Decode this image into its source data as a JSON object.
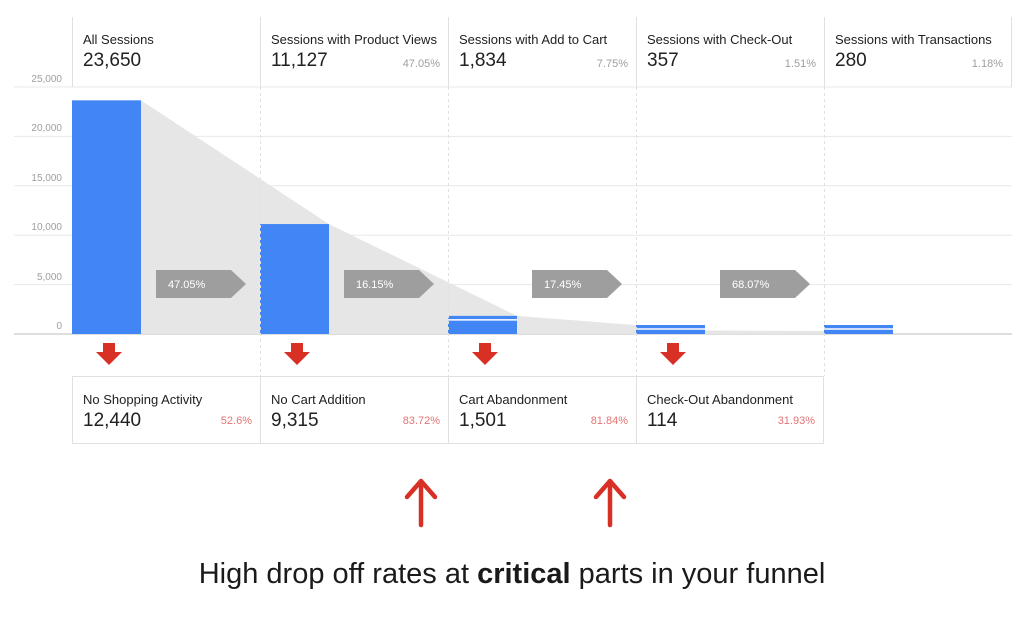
{
  "chart_data": {
    "type": "bar",
    "title": "",
    "y_ticks": [
      "25,000",
      "20,000",
      "15,000",
      "10,000",
      "5,000",
      "0"
    ],
    "ylim": [
      0,
      25000
    ],
    "categories": [
      "All Sessions",
      "Sessions with Product Views",
      "Sessions with Add to Cart",
      "Sessions with Check-Out",
      "Sessions with Transactions"
    ],
    "values": [
      23650,
      11127,
      1834,
      357,
      280
    ],
    "value_labels": [
      "23,650",
      "11,127",
      "1,834",
      "357",
      "280"
    ],
    "stage_percents": [
      "",
      "47.05%",
      "7.75%",
      "1.51%",
      "1.18%"
    ],
    "transition_percents": [
      "47.05%",
      "16.15%",
      "17.45%",
      "68.07%"
    ],
    "drop_offs": [
      {
        "name": "No Shopping Activity",
        "value": "12,440",
        "percent": "52.6%"
      },
      {
        "name": "No Cart Addition",
        "value": "9,315",
        "percent": "83.72%"
      },
      {
        "name": "Cart Abandonment",
        "value": "1,501",
        "percent": "81.84%"
      },
      {
        "name": "Check-Out Abandonment",
        "value": "114",
        "percent": "31.93%"
      }
    ],
    "highlighted_drop_offs": [
      "No Cart Addition",
      "Cart Abandonment"
    ],
    "colors": {
      "bar": "#4285f4",
      "funnel": "#e6e6e6",
      "transition_arrow": "#9e9e9e",
      "drop_arrow": "#d93025",
      "drop_percent": "#e57373"
    }
  },
  "caption": {
    "before": "High drop off rates at ",
    "bold": "critical",
    "after": " parts in your funnel"
  }
}
